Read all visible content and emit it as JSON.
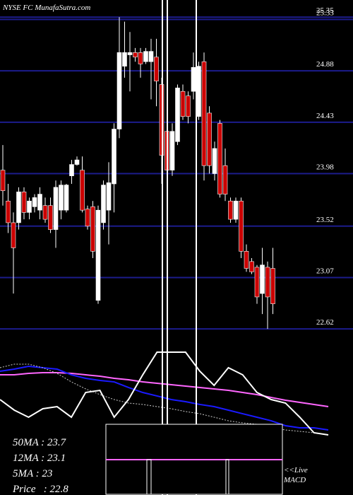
{
  "chart_data": [
    {
      "type": "candlestick",
      "title": "NYSE FC MunafaSutra.com",
      "up_color": "#ffffff",
      "down_color": "#cc0000",
      "grid_color": "#1c1c8c",
      "ylim": [
        22.59,
        25.5
      ],
      "yticks": [
        22.62,
        23.07,
        23.52,
        23.98,
        24.43,
        24.88,
        25.33,
        25.35
      ],
      "grid": true,
      "open": [
        24.01,
        23.74,
        23.55,
        23.55,
        23.82,
        23.64,
        23.69,
        23.66,
        23.7,
        23.7,
        23.49,
        23.66,
        23.66,
        23.96,
        24.06,
        24.01,
        23.67,
        23.69,
        22.87,
        23.55,
        23.66,
        23.89,
        24.37,
        24.92,
        25.02,
        25.04,
        25.04,
        24.96,
        24.96,
        25.0,
        24.76,
        24.35,
        24.01,
        24.26,
        24.7,
        24.66,
        24.7,
        24.48,
        24.96,
        24.51,
        23.98,
        24.42,
        24.05,
        23.74,
        23.58,
        23.74,
        23.3,
        23.21,
        23.16,
        22.93,
        23.16,
        23.15
      ],
      "high": [
        24.23,
        23.89,
        23.64,
        23.86,
        23.86,
        23.77,
        23.8,
        23.86,
        23.77,
        23.77,
        23.92,
        23.92,
        23.89,
        24.1,
        24.13,
        24.13,
        23.7,
        23.74,
        23.7,
        23.92,
        24.08,
        24.42,
        25.35,
        25.31,
        25.22,
        25.08,
        25.08,
        25.08,
        25.16,
        25.16,
        24.82,
        24.42,
        24.42,
        24.76,
        24.76,
        24.7,
        25.04,
        24.96,
        25.04,
        24.57,
        24.26,
        24.45,
        24.2,
        23.77,
        23.77,
        23.77,
        23.36,
        23.24,
        23.18,
        23.33,
        23.21,
        23.33
      ],
      "low": [
        23.7,
        23.46,
        22.93,
        23.49,
        23.58,
        23.58,
        23.64,
        23.58,
        23.55,
        23.46,
        23.33,
        23.58,
        23.64,
        23.89,
        24.05,
        23.64,
        23.49,
        23.24,
        22.84,
        23.49,
        23.36,
        23.64,
        24.29,
        24.82,
        24.7,
        24.96,
        24.82,
        24.94,
        24.63,
        24.57,
        23.89,
        23.98,
        23.96,
        24.23,
        24.45,
        24.42,
        24.63,
        24.45,
        23.92,
        23.98,
        23.92,
        23.77,
        23.74,
        23.55,
        23.55,
        23.24,
        23.12,
        23.1,
        22.84,
        22.75,
        22.62,
        22.75
      ],
      "close": [
        23.83,
        23.55,
        23.33,
        23.82,
        23.64,
        23.74,
        23.77,
        23.8,
        23.58,
        23.49,
        23.86,
        23.88,
        23.88,
        24.06,
        24.1,
        23.66,
        23.52,
        23.3,
        23.66,
        23.88,
        23.9,
        24.37,
        25.04,
        25.04,
        25.04,
        25.0,
        24.94,
        25.05,
        25.05,
        24.79,
        24.14,
        24.01,
        24.35,
        24.73,
        24.48,
        24.48,
        24.91,
        24.92,
        24.05,
        24.05,
        24.2,
        23.8,
        23.8,
        23.58,
        23.74,
        23.3,
        23.15,
        23.12,
        22.9,
        23.18,
        22.9,
        22.84
      ]
    },
    {
      "type": "line",
      "ylim": [
        -20,
        100
      ],
      "series": [
        {
          "color": "#ff66ff",
          "values": [
            63.6,
            63.6,
            65.5,
            66.4,
            66.4,
            65.5,
            63.6,
            61.8,
            59.1,
            57.3,
            54.5,
            52.7,
            50.9,
            49.1,
            47.3,
            45.5,
            43.6,
            40.9,
            38.2,
            34.5,
            30.9,
            28.2,
            25.5,
            22.7
          ]
        },
        {
          "color": "#1a1aff",
          "values": [
            68.2,
            70.9,
            74.5,
            72.7,
            70.9,
            63.6,
            59.1,
            56.4,
            54.5,
            47.3,
            40.9,
            36.4,
            31.8,
            29.1,
            25.5,
            22.7,
            18.2,
            13.6,
            9.1,
            4.5,
            -1.8,
            -4.5,
            -4.5,
            -7.3
          ]
        },
        {
          "color": "#cccccc",
          "dashed": true,
          "values": [
            72.7,
            77.3,
            77.3,
            72.7,
            65.5,
            54.5,
            45.5,
            38.2,
            31.8,
            27.3,
            25.5,
            22.7,
            20,
            16.4,
            13.6,
            9.1,
            4.5,
            1.8,
            0,
            -4.5,
            -7.3,
            -9.1,
            -10.9,
            -13.6
          ]
        },
        {
          "color": "#ffffff",
          "values": [
            31.8,
            18.2,
            9.1,
            20,
            22.7,
            9.1,
            40.9,
            43.6,
            9.1,
            31.8,
            63.6,
            92.7,
            92.7,
            92.7,
            68.2,
            50,
            72.7,
            63.6,
            40.9,
            31.8,
            27.3,
            9.1,
            -10.9,
            -13.6
          ]
        }
      ]
    },
    {
      "type": "text",
      "lines": [
        "50MA : 23.7",
        "12MA : 23.1",
        "5MA : 23",
        "Price   : 22.8"
      ],
      "macd_label": "<<Live MACD"
    }
  ]
}
